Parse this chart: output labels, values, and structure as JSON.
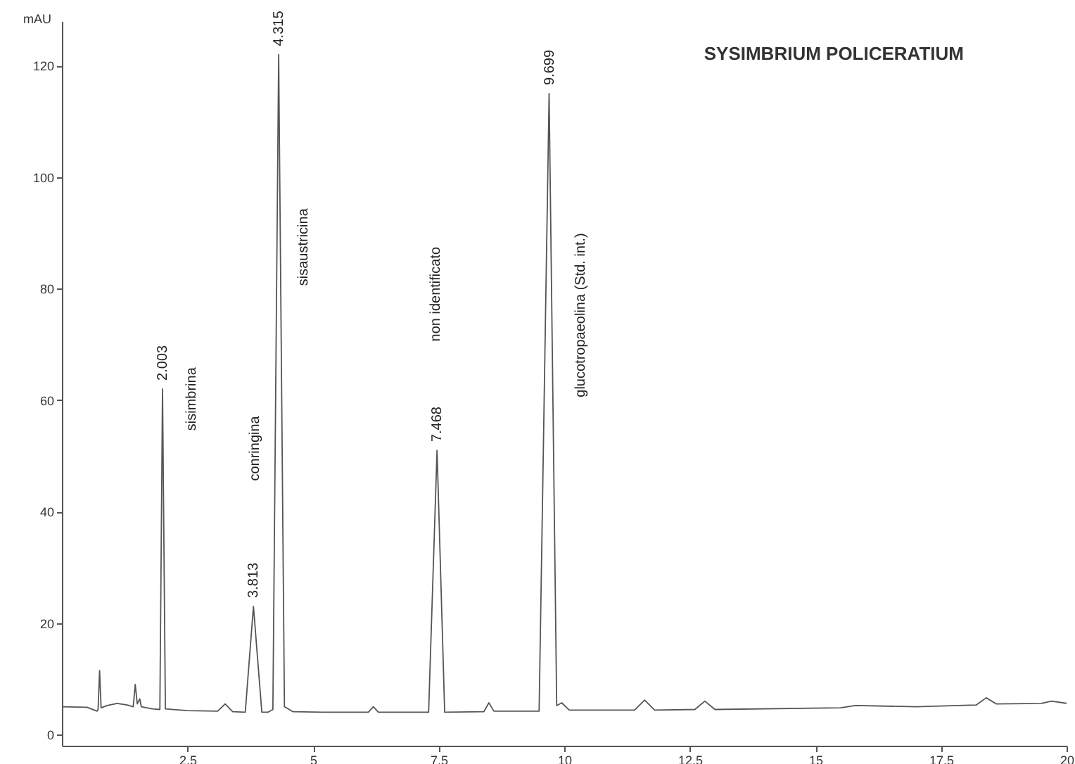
{
  "chart_data": {
    "type": "line",
    "title": "SYSIMBRIUM POLICERATIUM",
    "ylabel": "mAU",
    "x": [
      0,
      0.5,
      0.7,
      0.72,
      0.75,
      0.78,
      0.9,
      1.1,
      1.3,
      1.42,
      1.46,
      1.5,
      1.55,
      1.58,
      1.8,
      1.95,
      2.003,
      2.06,
      2.5,
      3.1,
      3.25,
      3.4,
      3.65,
      3.813,
      3.98,
      4.1,
      4.2,
      4.315,
      4.43,
      4.6,
      5.2,
      6.1,
      6.2,
      6.3,
      7.3,
      7.468,
      7.62,
      8.4,
      8.5,
      8.6,
      9.5,
      9.699,
      9.85,
      9.95,
      10.1,
      11.4,
      11.6,
      11.8,
      12.6,
      12.8,
      13,
      15.5,
      15.8,
      17,
      18.2,
      18.4,
      18.6,
      19.5,
      19.7,
      20
    ],
    "series": [
      {
        "color": "#555555",
        "values": [
          5,
          4.9,
          4.2,
          4.5,
          11.5,
          4.8,
          5.2,
          5.6,
          5.3,
          5,
          9,
          5.5,
          6.4,
          5,
          4.6,
          4.5,
          62,
          4.6,
          4.3,
          4.2,
          5.5,
          4.1,
          4,
          23,
          4,
          4,
          4.5,
          122,
          5,
          4.1,
          4,
          4,
          5,
          4,
          4,
          51,
          4,
          4.1,
          5.7,
          4.2,
          4.2,
          115,
          5.2,
          5.7,
          4.4,
          4.4,
          6.2,
          4.4,
          4.5,
          6,
          4.5,
          4.8,
          5.2,
          5,
          5.3,
          6.6,
          5.5,
          5.6,
          6,
          5.6
        ]
      }
    ],
    "xlim": [
      0,
      20
    ],
    "xticks": [
      2.5,
      5,
      7.5,
      10,
      12.5,
      15,
      17.5,
      20
    ],
    "ylim": [
      -2,
      128
    ],
    "yticks": [
      0,
      20,
      40,
      60,
      80,
      100,
      120
    ],
    "grid": false,
    "legend": false,
    "line_style": "solid",
    "marker": "none",
    "annotations": [
      {
        "text": "2.003",
        "x": 2.003,
        "y": 62
      },
      "sisimbrina",
      {
        "text": "3.813",
        "x": 3.813,
        "y": 23
      },
      "conringina",
      {
        "text": "4.315",
        "x": 4.315,
        "y": 122
      },
      "sisaustricina",
      {
        "text": "7.468",
        "x": 7.468,
        "y": 51
      },
      "non identificato",
      {
        "text": "9.699",
        "x": 9.699,
        "y": 115
      },
      "glucotropaeolina (Std. int.)"
    ]
  }
}
